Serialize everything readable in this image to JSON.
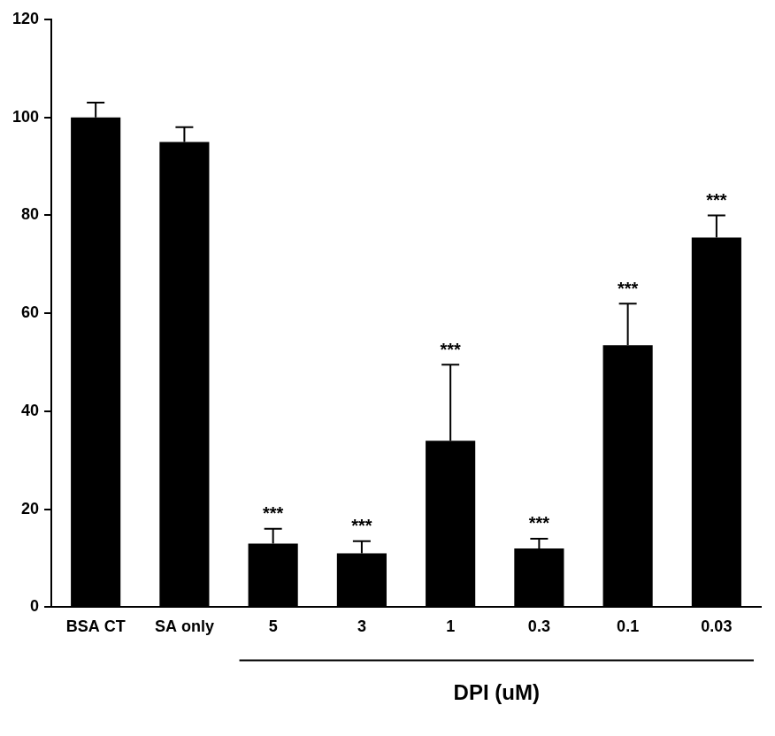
{
  "chart_data": {
    "type": "bar",
    "categories": [
      "BSA CT",
      "SA only",
      "5",
      "3",
      "1",
      "0.3",
      "0.1",
      "0.03"
    ],
    "values": [
      100,
      95,
      13,
      11,
      34,
      12,
      53.5,
      75.5
    ],
    "errors": [
      3,
      3,
      3,
      2.5,
      15.5,
      2,
      8.5,
      4.5
    ],
    "color": "#000000",
    "ylim": [
      0,
      120
    ],
    "yticks": [
      0,
      20,
      40,
      60,
      80,
      100,
      120
    ],
    "grid": false,
    "annotations": [
      {
        "category": "5",
        "text": "***"
      },
      {
        "category": "3",
        "text": "***"
      },
      {
        "category": "1",
        "text": "***"
      },
      {
        "category": "0.3",
        "text": "***"
      },
      {
        "category": "0.1",
        "text": "***"
      },
      {
        "category": "0.03",
        "text": "***"
      }
    ],
    "x_group": {
      "label": "DPI (uM)",
      "from": "5",
      "to": "0.03"
    }
  }
}
